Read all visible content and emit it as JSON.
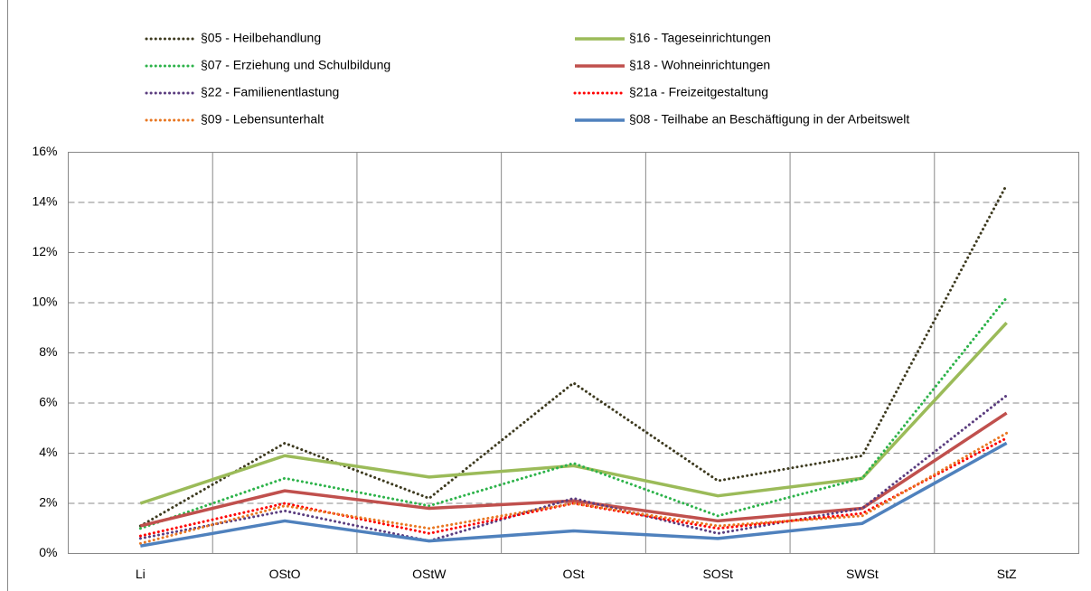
{
  "chart_data": {
    "type": "line",
    "categories": [
      "Li",
      "OStO",
      "OStW",
      "OSt",
      "SOSt",
      "SWSt",
      "StZ"
    ],
    "series": [
      {
        "name": "§05 - Heilbehandlung",
        "color": "#3d3a1f",
        "dotted": true,
        "values": [
          1.1,
          4.4,
          2.2,
          6.8,
          2.9,
          3.9,
          14.7
        ]
      },
      {
        "name": "§16 - Tageseinrichtungen",
        "color": "#9bbb59",
        "dotted": false,
        "values": [
          2.0,
          3.9,
          3.05,
          3.5,
          2.3,
          3.0,
          9.2
        ]
      },
      {
        "name": "§07 - Erziehung und Schulbildung",
        "color": "#2db34a",
        "dotted": true,
        "values": [
          1.0,
          3.0,
          1.9,
          3.6,
          1.5,
          3.0,
          10.2
        ]
      },
      {
        "name": "§18 - Wohneinrichtungen",
        "color": "#c0504d",
        "dotted": false,
        "values": [
          1.1,
          2.5,
          1.8,
          2.1,
          1.3,
          1.8,
          5.6
        ]
      },
      {
        "name": "§22 - Familienentlastung",
        "color": "#5b3d7f",
        "dotted": true,
        "values": [
          0.6,
          1.7,
          0.5,
          2.2,
          0.8,
          1.8,
          6.3
        ]
      },
      {
        "name": "§21a - Freizeitgestaltung",
        "color": "#ff0000",
        "dotted": true,
        "values": [
          0.7,
          2.0,
          0.8,
          2.0,
          1.0,
          1.6,
          4.6
        ]
      },
      {
        "name": "§09 - Lebensunterhalt",
        "color": "#e87722",
        "dotted": true,
        "values": [
          0.4,
          1.9,
          1.0,
          2.0,
          1.1,
          1.5,
          4.8
        ]
      },
      {
        "name": "§08 - Teilhabe an Beschäftigung in der Arbeitswelt",
        "color": "#4f81bd",
        "dotted": false,
        "values": [
          0.3,
          1.3,
          0.5,
          0.9,
          0.6,
          1.2,
          4.4
        ]
      }
    ],
    "ylim": [
      0,
      16
    ],
    "yticks": [
      {
        "value": 0,
        "label": "0%"
      },
      {
        "value": 2,
        "label": "2%"
      },
      {
        "value": 4,
        "label": "4%"
      },
      {
        "value": 6,
        "label": "6%"
      },
      {
        "value": 8,
        "label": "8%"
      },
      {
        "value": 10,
        "label": "10%"
      },
      {
        "value": 12,
        "label": "12%"
      },
      {
        "value": 14,
        "label": "14%"
      },
      {
        "value": 16,
        "label": "16%"
      }
    ],
    "grid": true
  }
}
